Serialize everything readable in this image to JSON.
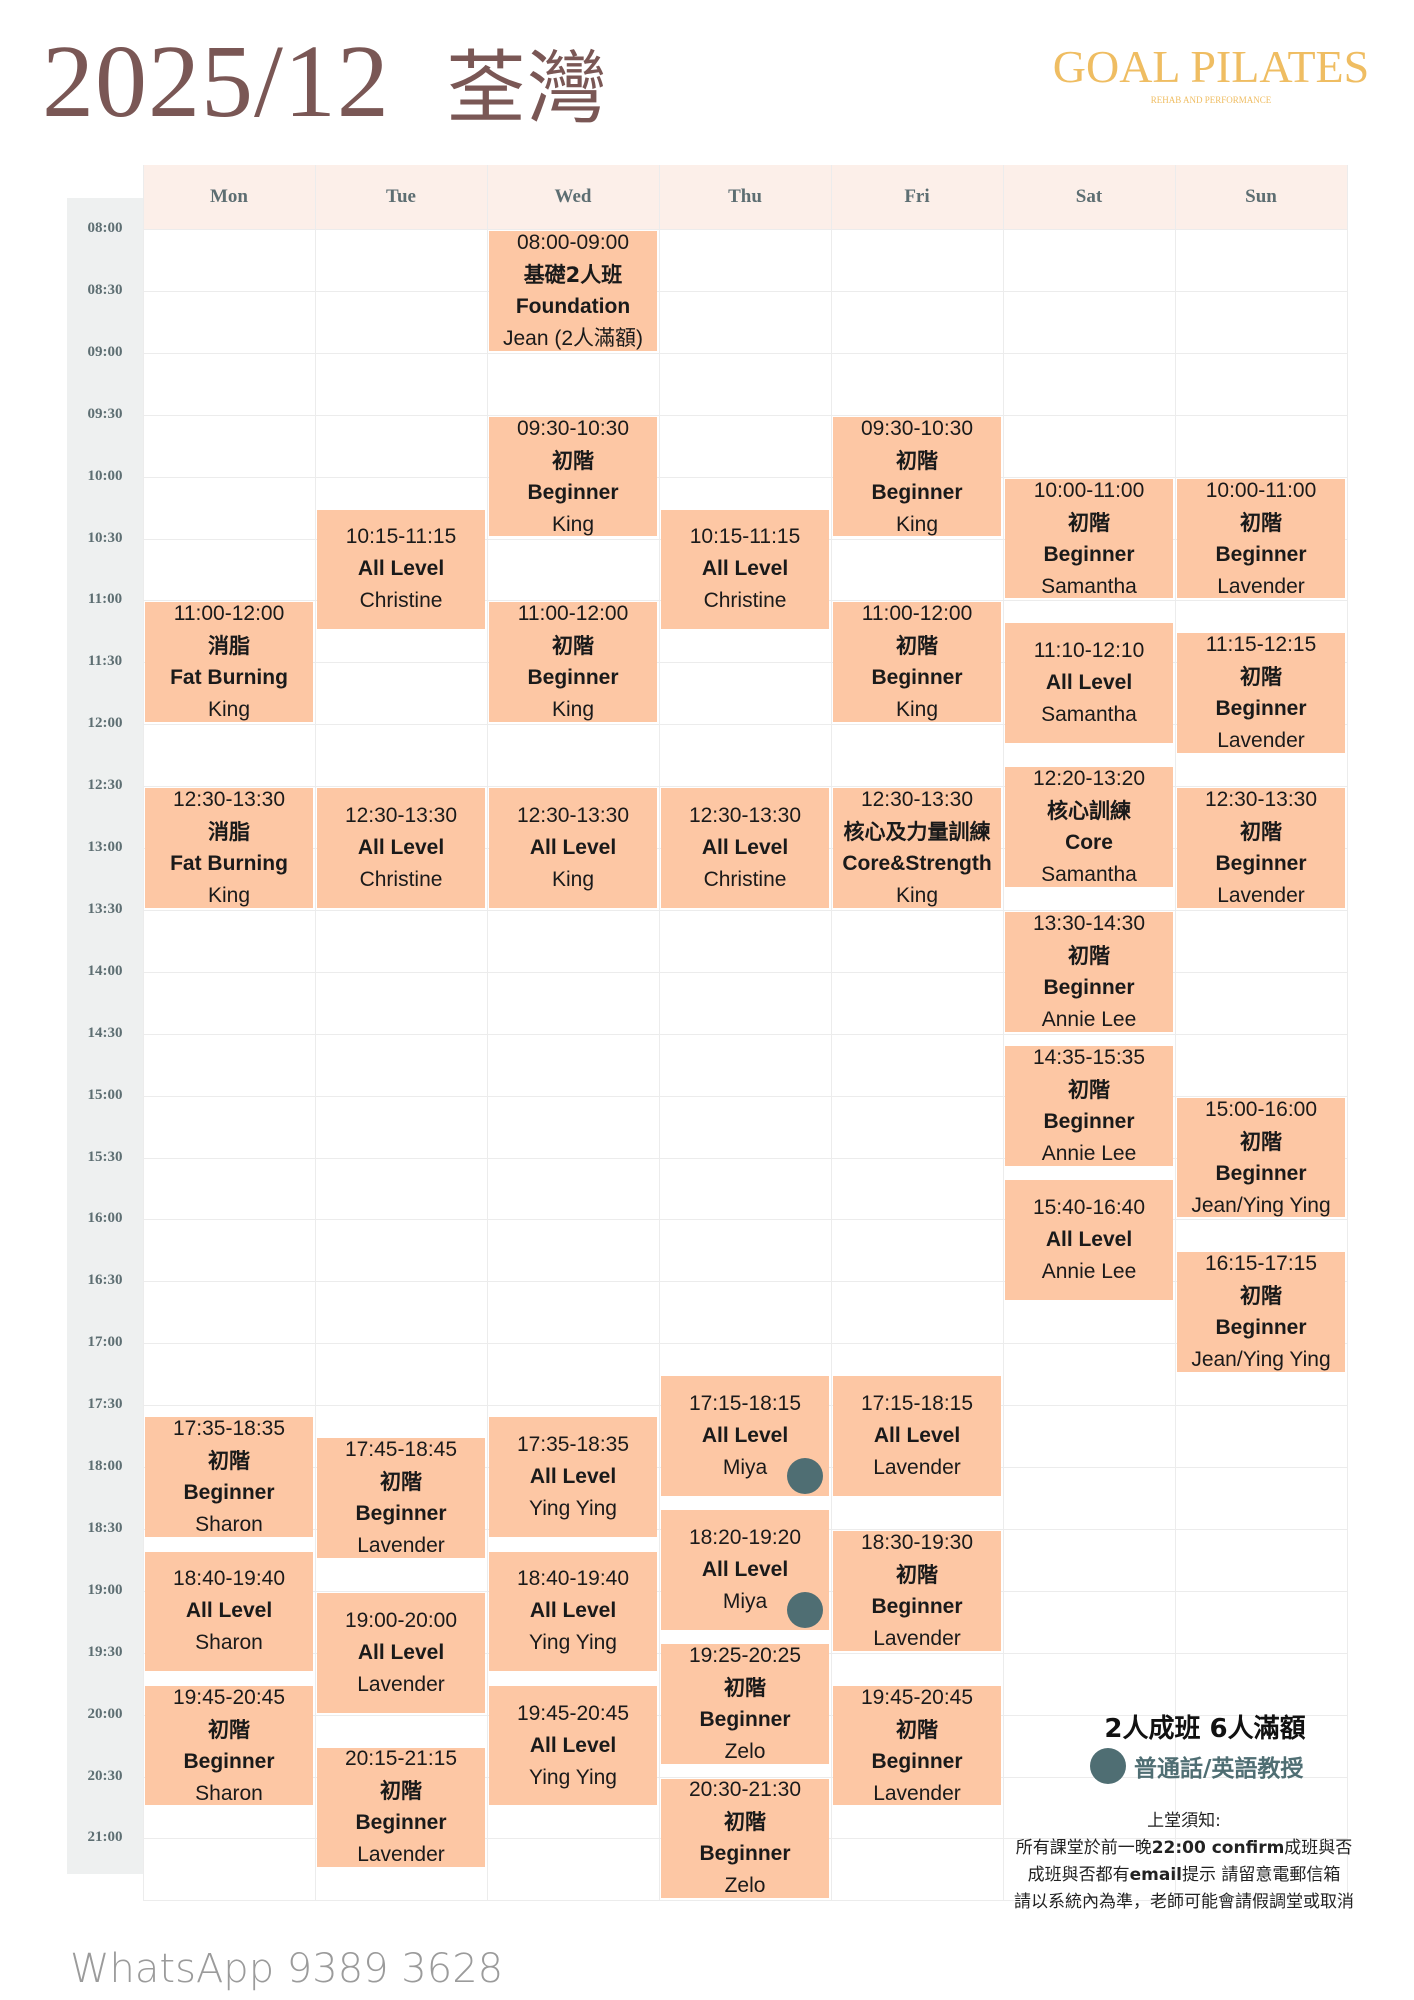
{
  "header": {
    "period": "2025/12",
    "location": "荃灣"
  },
  "logo": {
    "name": "GOAL PILATES",
    "tagline": "REHAB AND PERFORMANCE",
    "color": "#efbd62"
  },
  "colors": {
    "event": "#fdc7a4",
    "header": "#fcefe9",
    "dot": "#4f6e73",
    "title": "#7a5755"
  },
  "days": [
    "Mon",
    "Tue",
    "Wed",
    "Thu",
    "Fri",
    "Sat",
    "Sun"
  ],
  "times": [
    "08:00",
    "08:30",
    "09:00",
    "09:30",
    "10:00",
    "10:30",
    "11:00",
    "11:30",
    "12:00",
    "12:30",
    "13:00",
    "13:30",
    "14:00",
    "14:30",
    "15:00",
    "15:30",
    "16:00",
    "16:30",
    "17:00",
    "17:30",
    "18:00",
    "18:30",
    "19:00",
    "19:30",
    "20:00",
    "20:30",
    "21:00"
  ],
  "events": [
    {
      "day": 0,
      "time": "11:00-12:00",
      "zh": "消脂",
      "en": "Fat Burning",
      "teacher": "King"
    },
    {
      "day": 0,
      "time": "12:30-13:30",
      "zh": "消脂",
      "en": "Fat Burning",
      "teacher": "King"
    },
    {
      "day": 0,
      "time": "17:35-18:35",
      "zh": "初階",
      "en": "Beginner",
      "teacher": "Sharon"
    },
    {
      "day": 0,
      "time": "18:40-19:40",
      "en": "All Level",
      "teacher": "Sharon"
    },
    {
      "day": 0,
      "time": "19:45-20:45",
      "zh": "初階",
      "en": "Beginner",
      "teacher": "Sharon"
    },
    {
      "day": 1,
      "time": "10:15-11:15",
      "en": "All Level",
      "teacher": "Christine"
    },
    {
      "day": 1,
      "time": "12:30-13:30",
      "en": "All Level",
      "teacher": "Christine"
    },
    {
      "day": 1,
      "time": "17:45-18:45",
      "zh": "初階",
      "en": "Beginner",
      "teacher": "Lavender"
    },
    {
      "day": 1,
      "time": "19:00-20:00",
      "en": "All Level",
      "teacher": "Lavender"
    },
    {
      "day": 1,
      "time": "20:15-21:15",
      "zh": "初階",
      "en": "Beginner",
      "teacher": "Lavender"
    },
    {
      "day": 2,
      "time": "08:00-09:00",
      "zh": "基礎2人班",
      "en": "Foundation",
      "teacher": "Jean (2人滿額)"
    },
    {
      "day": 2,
      "time": "09:30-10:30",
      "zh": "初階",
      "en": "Beginner",
      "teacher": "King"
    },
    {
      "day": 2,
      "time": "11:00-12:00",
      "zh": "初階",
      "en": "Beginner",
      "teacher": "King"
    },
    {
      "day": 2,
      "time": "12:30-13:30",
      "en": "All Level",
      "teacher": "King"
    },
    {
      "day": 2,
      "time": "17:35-18:35",
      "en": "All Level",
      "teacher": "Ying Ying"
    },
    {
      "day": 2,
      "time": "18:40-19:40",
      "en": "All Level",
      "teacher": "Ying Ying"
    },
    {
      "day": 2,
      "time": "19:45-20:45",
      "en": "All Level",
      "teacher": "Ying Ying"
    },
    {
      "day": 3,
      "time": "10:15-11:15",
      "en": "All Level",
      "teacher": "Christine"
    },
    {
      "day": 3,
      "time": "12:30-13:30",
      "en": "All Level",
      "teacher": "Christine"
    },
    {
      "day": 3,
      "time": "17:15-18:15",
      "en": "All Level",
      "teacher": "Miya",
      "mandarin_english": true
    },
    {
      "day": 3,
      "time": "18:20-19:20",
      "en": "All Level",
      "teacher": "Miya",
      "mandarin_english": true
    },
    {
      "day": 3,
      "time": "19:25-20:25",
      "zh": "初階",
      "en": "Beginner",
      "teacher": "Zelo"
    },
    {
      "day": 3,
      "time": "20:30-21:30",
      "zh": "初階",
      "en": "Beginner",
      "teacher": "Zelo"
    },
    {
      "day": 4,
      "time": "09:30-10:30",
      "zh": "初階",
      "en": "Beginner",
      "teacher": "King"
    },
    {
      "day": 4,
      "time": "11:00-12:00",
      "zh": "初階",
      "en": "Beginner",
      "teacher": "King"
    },
    {
      "day": 4,
      "time": "12:30-13:30",
      "zh": "核心及力量訓練",
      "en": "Core&Strength",
      "teacher": "King"
    },
    {
      "day": 4,
      "time": "17:15-18:15",
      "en": "All Level",
      "teacher": "Lavender"
    },
    {
      "day": 4,
      "time": "18:30-19:30",
      "zh": "初階",
      "en": "Beginner",
      "teacher": "Lavender"
    },
    {
      "day": 4,
      "time": "19:45-20:45",
      "zh": "初階",
      "en": "Beginner",
      "teacher": "Lavender"
    },
    {
      "day": 5,
      "time": "10:00-11:00",
      "zh": "初階",
      "en": "Beginner",
      "teacher": "Samantha"
    },
    {
      "day": 5,
      "time": "11:10-12:10",
      "en": "All Level",
      "teacher": "Samantha"
    },
    {
      "day": 5,
      "time": "12:20-13:20",
      "zh": "核心訓練",
      "en": "Core",
      "teacher": "Samantha"
    },
    {
      "day": 5,
      "time": "13:30-14:30",
      "zh": "初階",
      "en": "Beginner",
      "teacher": "Annie Lee"
    },
    {
      "day": 5,
      "time": "14:35-15:35",
      "zh": "初階",
      "en": "Beginner",
      "teacher": "Annie Lee"
    },
    {
      "day": 5,
      "time": "15:40-16:40",
      "en": "All Level",
      "teacher": "Annie Lee"
    },
    {
      "day": 6,
      "time": "10:00-11:00",
      "zh": "初階",
      "en": "Beginner",
      "teacher": "Lavender"
    },
    {
      "day": 6,
      "time": "11:15-12:15",
      "zh": "初階",
      "en": "Beginner",
      "teacher": "Lavender"
    },
    {
      "day": 6,
      "time": "12:30-13:30",
      "zh": "初階",
      "en": "Beginner",
      "teacher": "Lavender"
    },
    {
      "day": 6,
      "time": "15:00-16:00",
      "zh": "初階",
      "en": "Beginner",
      "teacher": "Jean/Ying Ying"
    },
    {
      "day": 6,
      "time": "16:15-17:15",
      "zh": "初階",
      "en": "Beginner",
      "teacher": "Jean/Ying Ying"
    }
  ],
  "legend": {
    "capacity": "2人成班 6人滿額",
    "dot_meaning": "普通話/英語教授"
  },
  "notice": {
    "title": "上堂須知:",
    "line1_pre": "所有課堂於前一晚",
    "line1_bold": "22:00 confirm",
    "line1_post": "成班與否",
    "line2_pre": "成班與否都有",
    "line2_bold": "email",
    "line2_post": "提示 請留意電郵信箱",
    "line3": "請以系統內為準，老師可能會請假調堂或取消"
  },
  "contact": "WhatsApp 9389 3628"
}
